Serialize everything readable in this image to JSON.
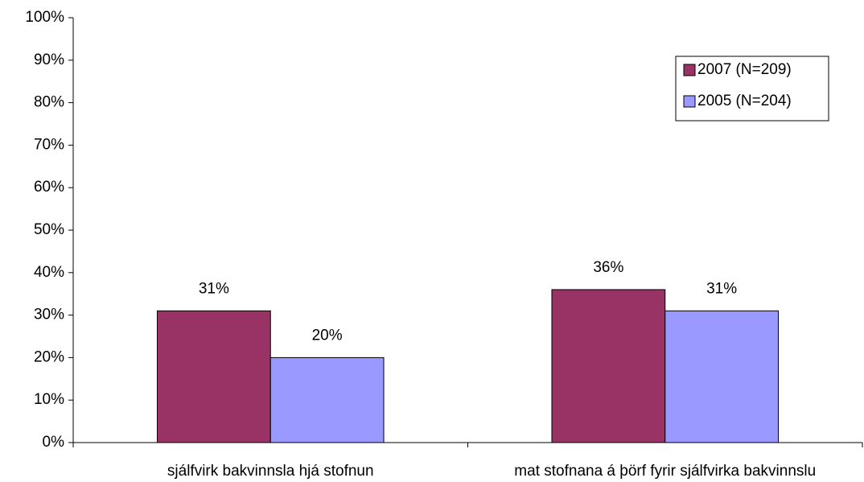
{
  "chart_data": {
    "type": "bar",
    "categories": [
      "sjálfvirk bakvinnsla hjá stofnun",
      "mat stofnana á þörf fyrir sjálfvirka bakvinnslu"
    ],
    "series": [
      {
        "name": "2007 (N=209)",
        "color": "#993366",
        "values": [
          31,
          36
        ],
        "value_labels": [
          "31%",
          "36%"
        ]
      },
      {
        "name": "2005 (N=204)",
        "color": "#9999ff",
        "values": [
          20,
          31
        ],
        "value_labels": [
          "20%",
          "31%"
        ]
      }
    ],
    "ylim": [
      0,
      100
    ],
    "yticks": [
      {
        "value": 0,
        "label": "0%"
      },
      {
        "value": 10,
        "label": "10%"
      },
      {
        "value": 20,
        "label": "20%"
      },
      {
        "value": 30,
        "label": "30%"
      },
      {
        "value": 40,
        "label": "40%"
      },
      {
        "value": 50,
        "label": "50%"
      },
      {
        "value": 60,
        "label": "60%"
      },
      {
        "value": 70,
        "label": "70%"
      },
      {
        "value": 80,
        "label": "80%"
      },
      {
        "value": 90,
        "label": "90%"
      },
      {
        "value": 100,
        "label": "100%"
      }
    ],
    "legend": "upper right"
  }
}
